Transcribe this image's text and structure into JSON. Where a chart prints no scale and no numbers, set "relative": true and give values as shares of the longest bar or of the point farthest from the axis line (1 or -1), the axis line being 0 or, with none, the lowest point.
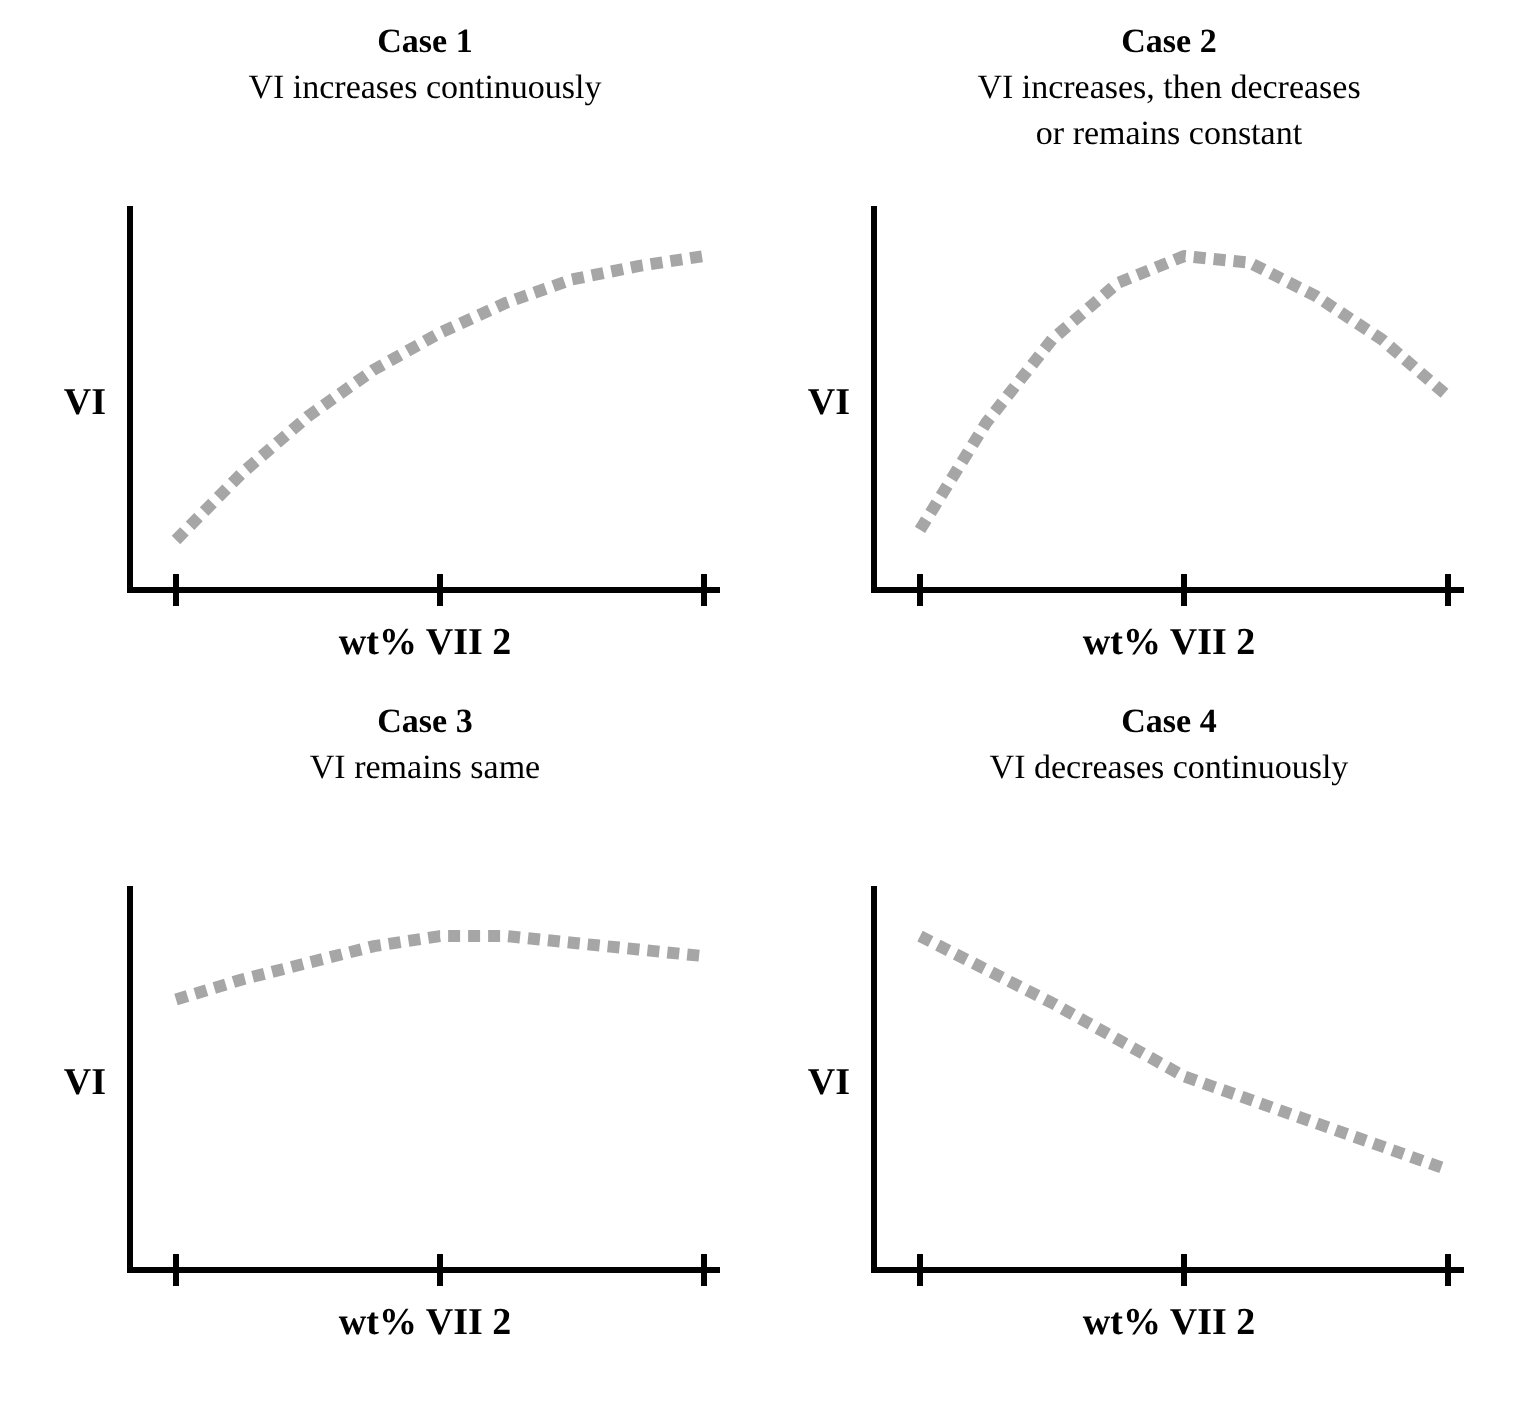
{
  "chart_data": [
    {
      "type": "line",
      "title": "Case 1",
      "subtitle": "VI increases continuously",
      "xlabel": "wt% VII 2",
      "ylabel": "VI",
      "relative": true,
      "line_style": "dotted",
      "categories": [
        null,
        null,
        null,
        null,
        null,
        null,
        null,
        null,
        null
      ],
      "series": [
        {
          "color": "#a6a6a6",
          "values": [
            0.15,
            0.35,
            0.52,
            0.66,
            0.77,
            0.86,
            0.93,
            0.97,
            1
          ]
        }
      ]
    },
    {
      "type": "line",
      "title": "Case 2",
      "subtitle": "VI increases, then decreases\nor remains constant",
      "xlabel": "wt% VII 2",
      "ylabel": "VI",
      "relative": true,
      "line_style": "dotted",
      "categories": [
        null,
        null,
        null,
        null,
        null,
        null,
        null,
        null,
        null
      ],
      "series": [
        {
          "color": "#a6a6a6",
          "values": [
            0.18,
            0.5,
            0.75,
            0.92,
            1,
            0.98,
            0.88,
            0.75,
            0.58
          ]
        }
      ]
    },
    {
      "type": "line",
      "title": "Case 3",
      "subtitle": "VI remains same",
      "xlabel": "wt% VII 2",
      "ylabel": "VI",
      "relative": true,
      "line_style": "dotted",
      "categories": [
        null,
        null,
        null,
        null,
        null,
        null,
        null,
        null,
        null
      ],
      "series": [
        {
          "color": "#a6a6a6",
          "values": [
            0.81,
            0.87,
            0.92,
            0.97,
            1,
            1,
            0.98,
            0.96,
            0.94
          ]
        }
      ]
    },
    {
      "type": "line",
      "title": "Case 4",
      "subtitle": "VI decreases continuously",
      "xlabel": "wt% VII 2",
      "ylabel": "VI",
      "relative": true,
      "line_style": "dotted",
      "categories": [
        null,
        null,
        null,
        null,
        null,
        null,
        null,
        null,
        null
      ],
      "series": [
        {
          "color": "#a6a6a6",
          "values": [
            1,
            0.9,
            0.8,
            0.69,
            0.58,
            0.51,
            0.44,
            0.37,
            0.3
          ]
        }
      ]
    }
  ]
}
